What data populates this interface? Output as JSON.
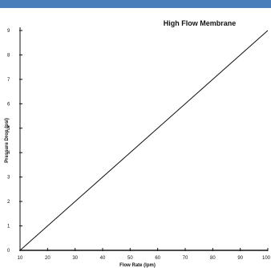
{
  "colors": {
    "top_band": "#4a7ebb",
    "axis": "#111111",
    "series": "#111111"
  },
  "chart_data": {
    "type": "line",
    "title": "High Flow Membrane",
    "xlabel": "Flow Rate (lpm)",
    "ylabel": "Pressure Drop (psi)",
    "xlim": [
      10,
      100
    ],
    "ylim": [
      0,
      9
    ],
    "x_ticks": [
      10,
      20,
      30,
      40,
      50,
      60,
      70,
      80,
      90,
      100
    ],
    "x_tick_labels": [
      "10",
      "20",
      "30",
      "40",
      "50",
      "60",
      "70",
      "80",
      "90",
      "100"
    ],
    "y_ticks": [
      0,
      1,
      2,
      3,
      4,
      5,
      6,
      7,
      8,
      9
    ],
    "y_tick_labels": [
      "0",
      "1",
      "2",
      "3",
      "4",
      "5",
      "6",
      "7",
      "8",
      "9"
    ],
    "grid": false,
    "series": [
      {
        "x": [
          10,
          100
        ],
        "y": [
          0,
          9
        ]
      }
    ]
  }
}
